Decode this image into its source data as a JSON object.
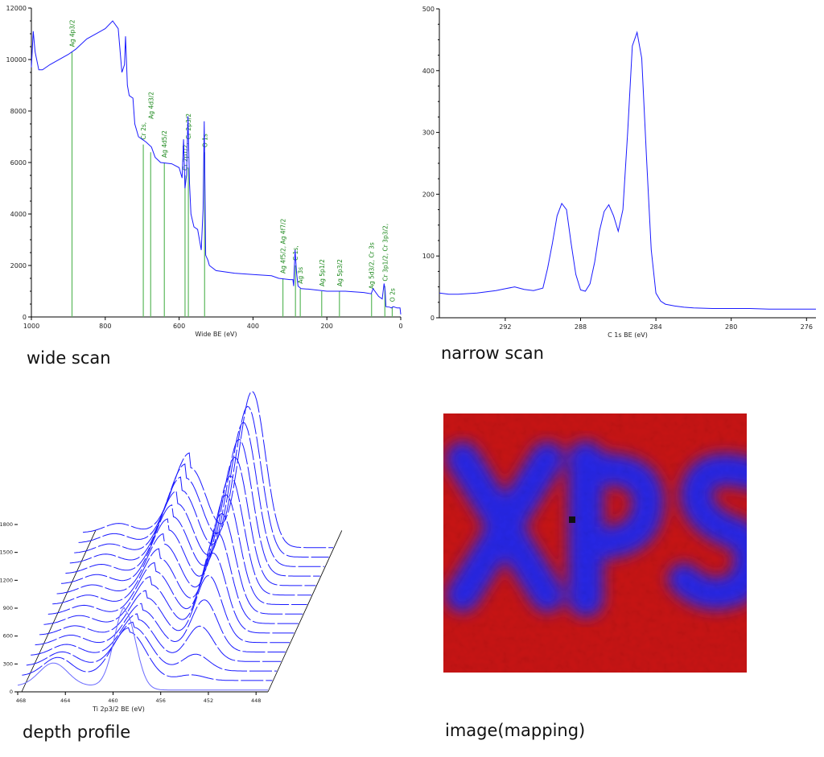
{
  "captions": {
    "wide": "wide scan",
    "narrow": "narrow scan",
    "depth": "depth profile",
    "mapping": "image(mapping)"
  },
  "colors": {
    "spectrum": "#1a1aff",
    "peak_marker": "#5cb85c",
    "peak_label": "#1f8a1f",
    "map_background": "#c81414",
    "map_signal": "#2626e6"
  },
  "chart_data": [
    {
      "type": "line",
      "xlabel": "Wide  BE (eV)",
      "xlim": [
        1000,
        0
      ],
      "ylim": [
        0,
        12000
      ],
      "xticks": [
        1000,
        800,
        600,
        400,
        200,
        0
      ],
      "yticks": [
        0,
        2000,
        4000,
        6000,
        8000,
        10000,
        12000
      ],
      "x": [
        1000,
        995,
        990,
        980,
        970,
        950,
        900,
        880,
        850,
        800,
        780,
        765,
        755,
        748,
        745,
        740,
        735,
        725,
        720,
        710,
        700,
        690,
        675,
        665,
        650,
        620,
        600,
        592,
        588,
        584,
        580,
        576,
        572,
        568,
        560,
        550,
        540,
        535,
        532,
        528,
        522,
        518,
        500,
        450,
        400,
        350,
        330,
        300,
        292,
        290,
        286,
        282,
        278,
        270,
        250,
        200,
        150,
        100,
        80,
        75,
        60,
        50,
        45,
        42,
        40,
        30,
        25,
        20,
        10,
        2,
        0
      ],
      "y": [
        9700,
        11100,
        10300,
        9600,
        9600,
        9800,
        10200,
        10400,
        10800,
        11200,
        11500,
        11200,
        9500,
        9800,
        10900,
        9000,
        8600,
        8500,
        7500,
        7000,
        6900,
        6800,
        6600,
        6200,
        6000,
        5950,
        5800,
        5400,
        6900,
        5000,
        5500,
        7800,
        5200,
        4000,
        3500,
        3400,
        2600,
        4200,
        7600,
        2400,
        2200,
        2000,
        1800,
        1700,
        1650,
        1600,
        1500,
        1450,
        1450,
        1200,
        2600,
        1700,
        1200,
        1100,
        1080,
        1000,
        1000,
        950,
        900,
        1100,
        800,
        700,
        1300,
        1000,
        400,
        380,
        350,
        400,
        350,
        350,
        100
      ],
      "peaks": [
        {
          "x": 890,
          "y": 10300,
          "label": "Ag 4p3/2"
        },
        {
          "x": 697,
          "y": 6700,
          "label": "Cr 2s,"
        },
        {
          "x": 677,
          "y": 6400,
          "label": "Ag 4d3/2"
        },
        {
          "x": 640,
          "y": 6000,
          "label": "Ag 4d5/2"
        },
        {
          "x": 584,
          "y": 5500,
          "label": "Cr 2p1/2,"
        },
        {
          "x": 575,
          "y": 5800,
          "label": "Cr 2p3/2"
        },
        {
          "x": 531,
          "y": 6400,
          "label": "O 1s"
        },
        {
          "x": 319,
          "y": 1500,
          "label": "Ag 4f5/2, Ag 4f7/2"
        },
        {
          "x": 285,
          "y": 2000,
          "label": "C 1s,"
        },
        {
          "x": 272,
          "y": 1100,
          "label": "Ag 3s"
        },
        {
          "x": 214,
          "y": 1000,
          "label": "Ag 5p1/2"
        },
        {
          "x": 166,
          "y": 1000,
          "label": "Ag 5p3/2"
        },
        {
          "x": 79,
          "y": 900,
          "label": "Ag 5d3/2, Cr 3s"
        },
        {
          "x": 43,
          "y": 1200,
          "label": "Cr 3p1/2, Cr 3p3/2,"
        },
        {
          "x": 23,
          "y": 400,
          "label": "O 2s"
        }
      ]
    },
    {
      "type": "line",
      "xlabel": "C 1s  BE (eV)",
      "xlim": [
        295.5,
        275.5
      ],
      "ylim": [
        0,
        500
      ],
      "xticks": [
        292,
        288,
        284,
        280,
        276
      ],
      "yticks": [
        0,
        100,
        200,
        300,
        400,
        500
      ],
      "x": [
        295.5,
        295,
        294.5,
        294,
        293.5,
        293,
        292.5,
        292,
        291.5,
        291,
        290.5,
        290,
        289.75,
        289.5,
        289.25,
        289,
        288.75,
        288.5,
        288.25,
        288,
        287.75,
        287.5,
        287.25,
        287,
        286.75,
        286.5,
        286.25,
        286,
        285.75,
        285.5,
        285.25,
        285,
        284.75,
        284.5,
        284.25,
        284,
        283.75,
        283.5,
        283,
        282.5,
        282,
        281,
        280,
        279,
        278,
        277,
        276,
        275.5
      ],
      "y": [
        40,
        38,
        38,
        39,
        40,
        42,
        44,
        47,
        50,
        46,
        44,
        48,
        80,
        120,
        165,
        185,
        175,
        120,
        70,
        45,
        43,
        55,
        90,
        140,
        172,
        183,
        165,
        140,
        175,
        300,
        440,
        462,
        420,
        260,
        110,
        40,
        27,
        22,
        19,
        17,
        16,
        15,
        15,
        15,
        14,
        14,
        14,
        14
      ]
    },
    {
      "type": "line",
      "subtype": "3d-waterfall",
      "xlabel": "Ti 2p3/2  BE (eV)",
      "xlim": [
        468,
        447
      ],
      "ylim": [
        0,
        1800
      ],
      "xticks": [
        468,
        464,
        460,
        456,
        452,
        448
      ],
      "yticks": [
        0,
        300,
        600,
        900,
        1200,
        1500,
        1800
      ],
      "peak_positions_eV": {
        "ti4": 459,
        "ti0": 453.8,
        "satellite": 465
      },
      "spectra": [
        {
          "ti4": 850,
          "ti0": 0,
          "satellite": 250
        },
        {
          "ti4": 520,
          "ti0": 60,
          "satellite": 200
        },
        {
          "ti4": 470,
          "ti0": 180,
          "satellite": 150
        },
        {
          "ti4": 450,
          "ti0": 380,
          "satellite": 120
        },
        {
          "ti4": 450,
          "ti0": 560,
          "satellite": 110
        },
        {
          "ti4": 480,
          "ti0": 720,
          "satellite": 100
        },
        {
          "ti4": 520,
          "ti0": 860,
          "satellite": 100
        },
        {
          "ti4": 560,
          "ti0": 980,
          "satellite": 100
        },
        {
          "ti4": 600,
          "ti0": 1080,
          "satellite": 100
        },
        {
          "ti4": 650,
          "ti0": 1180,
          "satellite": 100
        },
        {
          "ti4": 700,
          "ti0": 1280,
          "satellite": 100
        },
        {
          "ti4": 740,
          "ti0": 1380,
          "satellite": 100
        },
        {
          "ti4": 780,
          "ti0": 1470,
          "satellite": 100
        },
        {
          "ti4": 820,
          "ti0": 1550,
          "satellite": 100
        },
        {
          "ti4": 850,
          "ti0": 1620,
          "satellite": 100
        },
        {
          "ti4": 860,
          "ti0": 1680,
          "satellite": 100
        }
      ]
    }
  ]
}
